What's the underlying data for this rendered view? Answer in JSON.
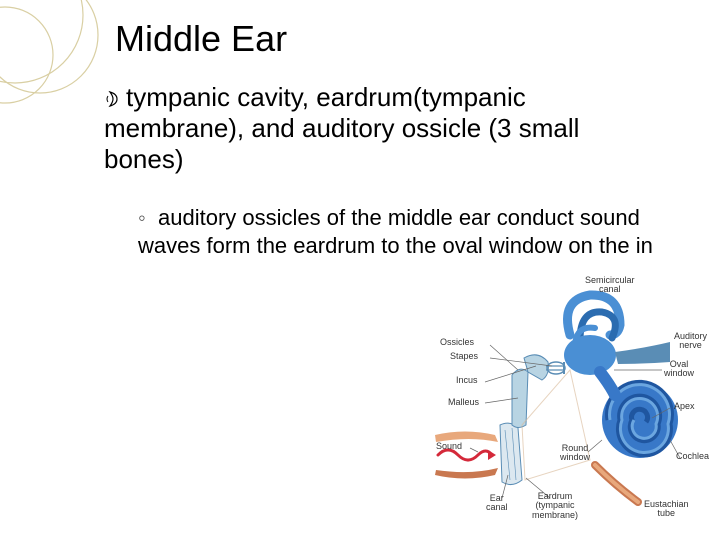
{
  "title": "Middle Ear",
  "main_bullet": {
    "glyph": "☽",
    "text": "tympanic cavity, eardrum(tympanic membrane), and auditory ossicle (3 small bones)"
  },
  "sub_bullet": {
    "marker": "◦",
    "text": "auditory ossicles of the middle ear conduct sound waves form the eardrum to the oval window on the in"
  },
  "decoration": {
    "stroke_color": "#d9cfa3",
    "stroke_width": 1.2
  },
  "diagram": {
    "type": "infographic",
    "background": "#f5f5f5",
    "labels": {
      "semicircular_canal": "Semicircular\ncanal",
      "auditory_nerve": "Auditory\nnerve",
      "ossicles": "Ossicles",
      "stapes": "Stapes",
      "incus": "Incus",
      "malleus": "Malleus",
      "oval_window": "Oval\nwindow",
      "apex": "Apex",
      "round_window": "Round\nwindow",
      "cochlea": "Cochlea",
      "sound": "Sound",
      "ear_canal": "Ear\ncanal",
      "eardrum": "Eardrum\n(tympanic\nmembrane)",
      "eustachian_tube": "Eustachian\ntube"
    },
    "colors": {
      "canal_wall": "#e8a87c",
      "canal_wall_dark": "#c97850",
      "ossicle_fill": "#b8d4e3",
      "ossicle_stroke": "#5a8db5",
      "semicircular": "#4a8fd4",
      "semicircular_dark": "#2b6cb0",
      "cochlea_fill": "#3878c8",
      "cochlea_dark": "#1f56a0",
      "nerve": "#5a8db5",
      "sound_wave": "#d4293a",
      "label_line": "#666666",
      "eardrum": "#dce8f0"
    }
  }
}
